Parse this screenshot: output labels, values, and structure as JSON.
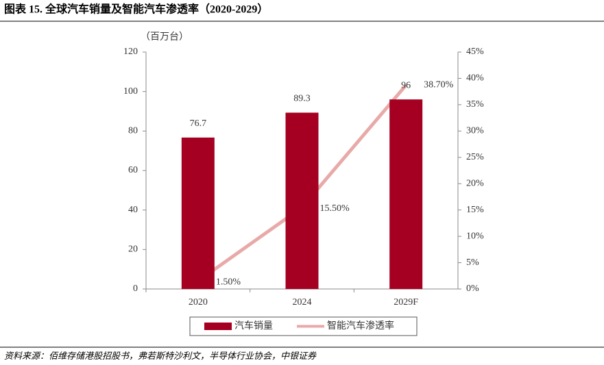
{
  "chart_data": {
    "type": "bar",
    "title": "图表 15. 全球汽车销量及智能汽车渗透率（2020-2029）",
    "y_label": "（百万台）",
    "source": "资料来源：佰维存储港股招股书，弗若斯特沙利文，半导体行业协会，中银证券",
    "categories": [
      "2020",
      "2024",
      "2029F"
    ],
    "series": [
      {
        "name": "汽车销量",
        "type": "bar",
        "color": "#a50021",
        "values": [
          76.7,
          89.3,
          96
        ]
      },
      {
        "name": "智能汽车渗透率",
        "type": "line",
        "axis": "y2",
        "color": "#e8aaa8",
        "values": [
          1.5,
          15.5,
          38.7
        ],
        "value_labels": [
          "1.50%",
          "15.50%",
          "38.70%"
        ]
      }
    ],
    "ylim": [
      0,
      120
    ],
    "yticks": [
      0,
      20,
      40,
      60,
      80,
      100,
      120
    ],
    "y2lim": [
      0,
      45
    ],
    "y2ticks": [
      {
        "value": 0,
        "label": "0%"
      },
      {
        "value": 5,
        "label": "5%"
      },
      {
        "value": 10,
        "label": "10%"
      },
      {
        "value": 15,
        "label": "15%"
      },
      {
        "value": 20,
        "label": "20%"
      },
      {
        "value": 25,
        "label": "25%"
      },
      {
        "value": 30,
        "label": "30%"
      },
      {
        "value": 35,
        "label": "35%"
      },
      {
        "value": 40,
        "label": "40%"
      },
      {
        "value": 45,
        "label": "45%"
      }
    ],
    "legend": "bottom"
  }
}
